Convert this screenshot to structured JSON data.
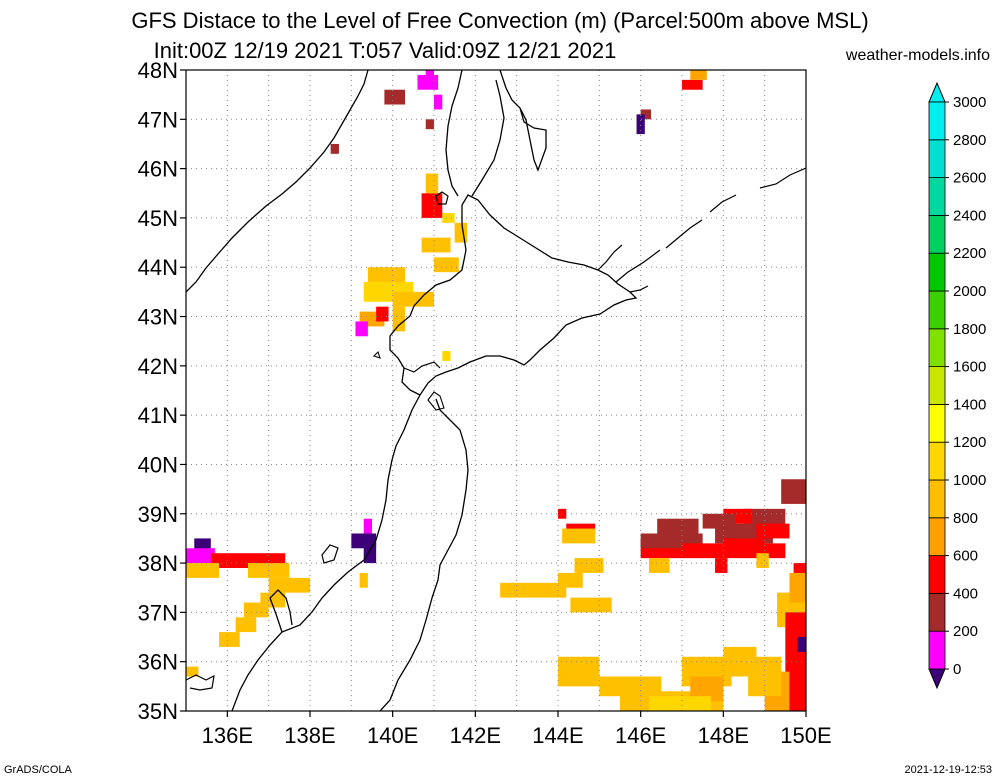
{
  "header": {
    "title_line1": "GFS Distace to the Level of Free Convection (m) (Parcel:500m above MSL)",
    "title_line2": "Init:00Z 12/19 2021 T:057 Valid:09Z 12/21 2021",
    "site": "weather-models.info"
  },
  "footer": {
    "left": "GrADS/COLA",
    "right": "2021-12-19-12:53"
  },
  "map": {
    "lon_range": [
      135,
      150
    ],
    "lat_range": [
      35,
      48
    ],
    "lat_labels": [
      "35N",
      "36N",
      "37N",
      "38N",
      "39N",
      "40N",
      "41N",
      "42N",
      "43N",
      "44N",
      "45N",
      "46N",
      "47N",
      "48N"
    ],
    "lon_labels": [
      "136E",
      "138E",
      "140E",
      "142E",
      "144E",
      "146E",
      "148E",
      "150E"
    ],
    "grid": true,
    "colors": {
      "0": "#3c0078",
      "200": "#ff00ff",
      "400": "#a52a2a",
      "600": "#ff0000",
      "800": "#ffa500",
      "1000": "#ffc000",
      "1200": "#ffd700",
      "1400": "#ffff00"
    }
  },
  "colorbar": {
    "labels": [
      "0",
      "200",
      "400",
      "600",
      "800",
      "1000",
      "1200",
      "1400",
      "1600",
      "1800",
      "2000",
      "2200",
      "2400",
      "2600",
      "2800",
      "3000"
    ],
    "colors": [
      "#3c0078",
      "#ff00ff",
      "#a52a2a",
      "#ff0000",
      "#ffa000",
      "#ffbe00",
      "#ffd700",
      "#ffff00",
      "#c8e600",
      "#80e000",
      "#3cd000",
      "#00c800",
      "#00d060",
      "#00d8a0",
      "#00e0d0",
      "#00eeee"
    ]
  }
}
